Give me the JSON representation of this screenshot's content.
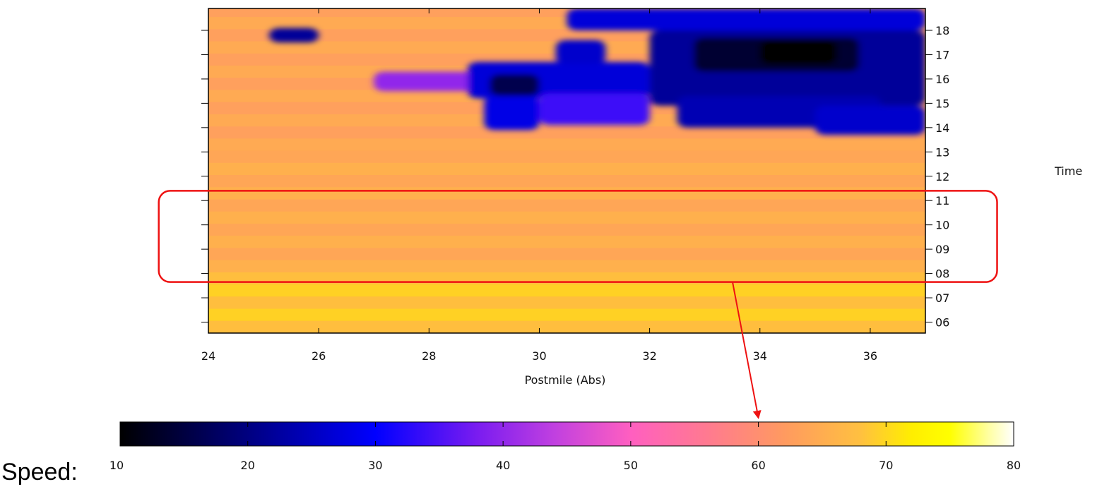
{
  "chart_data": [
    {
      "type": "heatmap",
      "xlabel": "Postmile (Abs)",
      "ylabel": "Time",
      "xlim": [
        24,
        37
      ],
      "ylim": [
        5.55,
        18.9
      ],
      "x_ticks": [
        24,
        26,
        28,
        30,
        32,
        34,
        36
      ],
      "x_tick_labels": [
        "24",
        "26",
        "28",
        "30",
        "32",
        "34",
        "36"
      ],
      "y_ticks": [
        6,
        7,
        8,
        9,
        10,
        11,
        12,
        13,
        14,
        15,
        16,
        17,
        18
      ],
      "y_tick_labels": [
        "06",
        "07",
        "08",
        "09",
        "10",
        "11",
        "12",
        "13",
        "14",
        "15",
        "16",
        "17",
        "18"
      ],
      "y_axis_side": "right",
      "value_name": "Speed",
      "value_range": [
        10,
        80
      ],
      "highlight": {
        "shape": "rounded-rectangle",
        "color": "#ee1111",
        "time_range": [
          7.65,
          11.4
        ],
        "postmile_range": [
          23.1,
          38.3
        ],
        "arrow_to_speed": 60
      },
      "congestion_regions": [
        {
          "postmiles": [
            25.1,
            26.0
          ],
          "times": [
            17.5,
            18.1
          ],
          "speed": 22
        },
        {
          "postmiles": [
            27.0,
            29.2
          ],
          "times": [
            15.5,
            16.3
          ],
          "speed": 40
        },
        {
          "postmiles": [
            28.7,
            32.0
          ],
          "times": [
            15.2,
            16.7
          ],
          "speed": 27
        },
        {
          "postmiles": [
            29.1,
            30.0
          ],
          "times": [
            15.3,
            16.2
          ],
          "speed": 16
        },
        {
          "postmiles": [
            29.0,
            30.0
          ],
          "times": [
            13.9,
            15.3
          ],
          "speed": 28
        },
        {
          "postmiles": [
            30.0,
            32.0
          ],
          "times": [
            14.1,
            15.4
          ],
          "speed": 34
        },
        {
          "postmiles": [
            30.3,
            31.2
          ],
          "times": [
            16.6,
            17.6
          ],
          "speed": 26
        },
        {
          "postmiles": [
            30.5,
            37.0
          ],
          "times": [
            18.0,
            18.9
          ],
          "speed": 27
        },
        {
          "postmiles": [
            32.0,
            37.0
          ],
          "times": [
            14.9,
            18.0
          ],
          "speed": 22
        },
        {
          "postmiles": [
            32.8,
            35.8
          ],
          "times": [
            16.3,
            17.7
          ],
          "speed": 14
        },
        {
          "postmiles": [
            34.0,
            35.4
          ],
          "times": [
            16.6,
            17.6
          ],
          "speed": 10
        },
        {
          "postmiles": [
            32.5,
            36.2
          ],
          "times": [
            14.0,
            15.3
          ],
          "speed": 24
        },
        {
          "postmiles": [
            35.0,
            37.0
          ],
          "times": [
            13.7,
            14.9
          ],
          "speed": 26
        }
      ]
    },
    {
      "type": "colorbar",
      "caption": "Speed:",
      "range": [
        10,
        80
      ],
      "ticks": [
        10,
        20,
        30,
        40,
        50,
        60,
        70,
        80
      ],
      "tick_labels": [
        "10",
        "20",
        "30",
        "40",
        "50",
        "60",
        "70",
        "80"
      ],
      "color_stops": [
        {
          "value": 10,
          "color": "#000000"
        },
        {
          "value": 20,
          "color": "#000080"
        },
        {
          "value": 30,
          "color": "#0000ff"
        },
        {
          "value": 38,
          "color": "#7a1cf0"
        },
        {
          "value": 44,
          "color": "#c040e0"
        },
        {
          "value": 50,
          "color": "#ff5fc0"
        },
        {
          "value": 56,
          "color": "#ff7a90"
        },
        {
          "value": 62,
          "color": "#ff9a60"
        },
        {
          "value": 68,
          "color": "#ffc040"
        },
        {
          "value": 72,
          "color": "#ffee00"
        },
        {
          "value": 75,
          "color": "#ffff00"
        },
        {
          "value": 78,
          "color": "#ffffa0"
        },
        {
          "value": 80,
          "color": "#ffffff"
        }
      ]
    }
  ]
}
